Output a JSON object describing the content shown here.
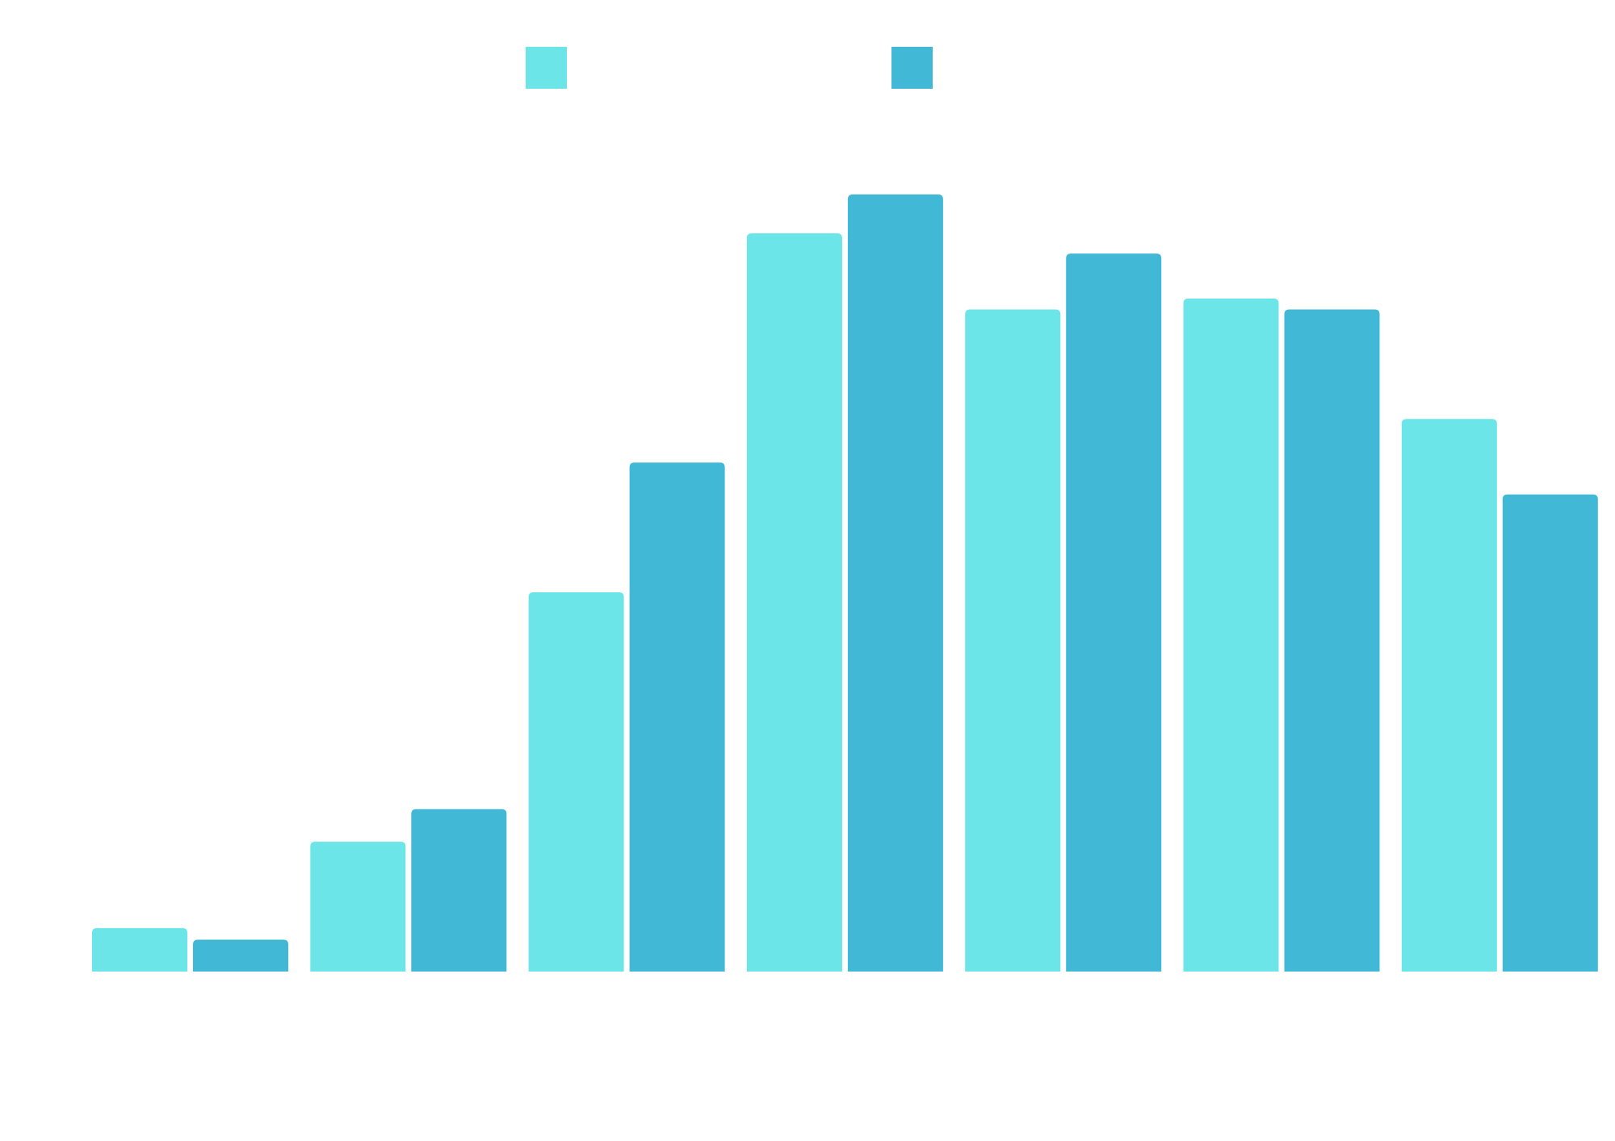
{
  "chart_data": {
    "type": "bar",
    "title": "",
    "xlabel": "",
    "ylabel": "",
    "categories": [
      "",
      "",
      "",
      "",
      "",
      "",
      ""
    ],
    "ylim": [
      0,
      100
    ],
    "grid": false,
    "legend_position": "top-center",
    "series": [
      {
        "color": "#6ce5e8",
        "values": [
          5.6,
          16.7,
          48.8,
          95.0,
          85.2,
          86.6,
          71.1
        ]
      },
      {
        "color": "#41b8d5",
        "values": [
          4.1,
          20.9,
          65.5,
          100.0,
          92.4,
          85.2,
          61.4
        ]
      }
    ]
  }
}
